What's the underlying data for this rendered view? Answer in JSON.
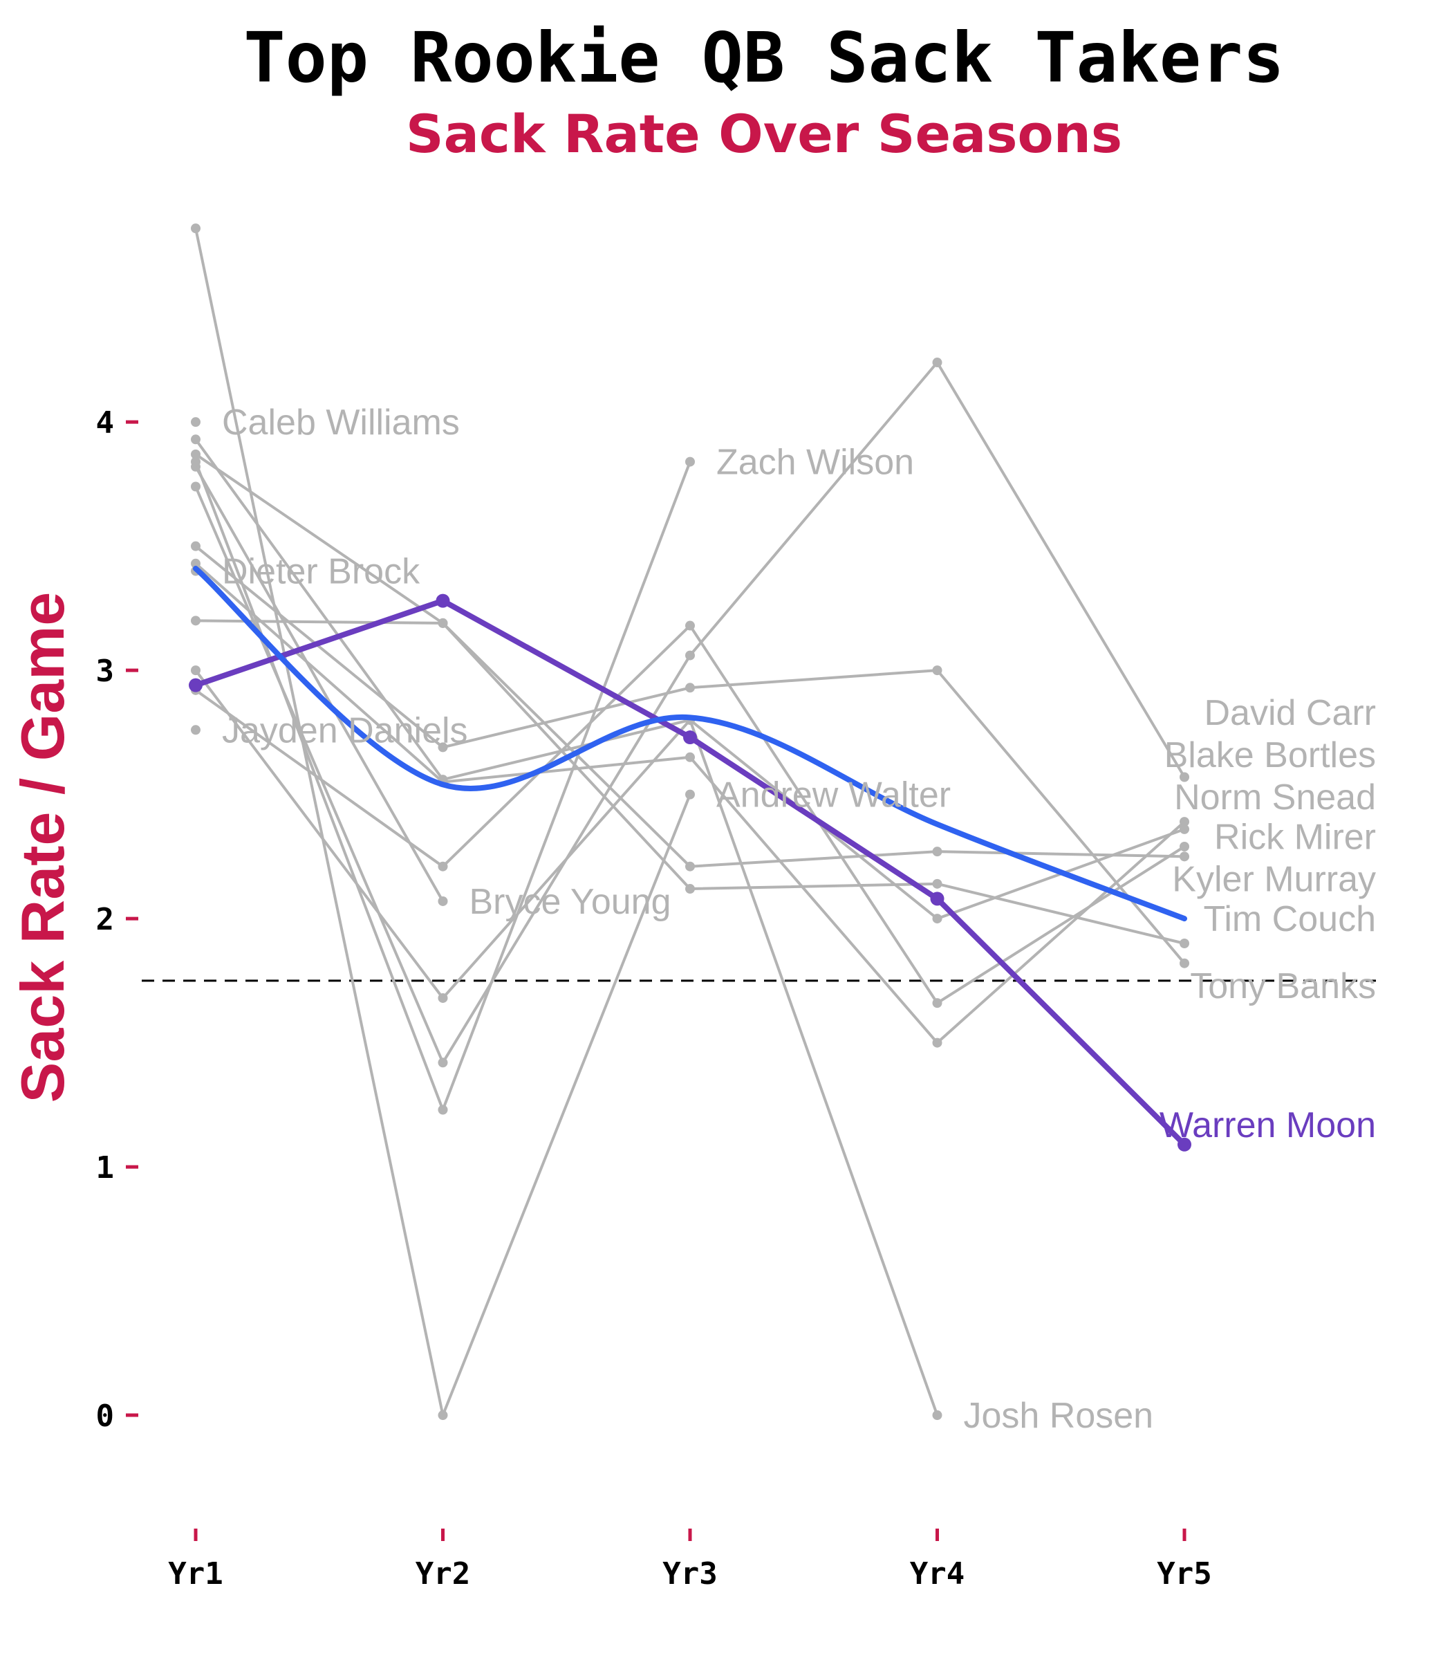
{
  "title": "Top Rookie QB Sack Takers",
  "subtitle": "Sack Rate Over Seasons",
  "colors": {
    "accent": "#c8174a",
    "grey": "#b3b3b3",
    "trend": "#2f62f0",
    "highlight": "#6a3dbf"
  },
  "chart_data": {
    "type": "line",
    "title": "Top Rookie QB Sack Takers",
    "subtitle": "Sack Rate Over Seasons",
    "xlabel": "",
    "ylabel": "Sack Rate / Game",
    "categories": [
      "Yr1",
      "Yr2",
      "Yr3",
      "Yr4",
      "Yr5"
    ],
    "y_ticks": [
      "0",
      "1",
      "2",
      "3",
      "4"
    ],
    "ylim": [
      -0.22,
      4.8
    ],
    "grid": false,
    "reference_line": 1.75,
    "series": [
      {
        "name": "Caleb Williams",
        "values": [
          4.0,
          null,
          null,
          null,
          null
        ]
      },
      {
        "name": "Dieter Brock",
        "values": [
          3.4,
          null,
          null,
          null,
          null
        ]
      },
      {
        "name": "Jayden Daniels",
        "values": [
          2.76,
          null,
          null,
          null,
          null
        ]
      },
      {
        "name": "Bryce Young",
        "values": [
          3.82,
          2.07,
          null,
          null,
          null
        ]
      },
      {
        "name": "Zach Wilson",
        "values": [
          3.84,
          1.23,
          3.84,
          null,
          null
        ]
      },
      {
        "name": "Andrew Walter",
        "values": [
          4.78,
          0.0,
          2.5,
          null,
          null
        ]
      },
      {
        "name": "Josh Rosen",
        "values": [
          3.93,
          2.56,
          2.8,
          0.0,
          null
        ]
      },
      {
        "name": "David Carr",
        "values": [
          3.74,
          1.42,
          3.06,
          4.24,
          2.57
        ]
      },
      {
        "name": "Blake Bortles",
        "values": [
          3.43,
          2.55,
          2.65,
          1.5,
          2.39
        ]
      },
      {
        "name": "Norm Snead",
        "values": [
          3.5,
          2.69,
          2.93,
          3.0,
          1.82
        ]
      },
      {
        "name": "Rick Mirer",
        "values": [
          3.2,
          3.19,
          2.21,
          2.27,
          2.25
        ]
      },
      {
        "name": "Kyler Murray",
        "values": [
          3.0,
          1.68,
          2.8,
          2.0,
          2.36
        ]
      },
      {
        "name": "Tim Couch",
        "values": [
          2.92,
          2.21,
          3.18,
          1.66,
          2.29
        ]
      },
      {
        "name": "Tony Banks",
        "values": [
          3.87,
          3.19,
          2.12,
          2.14,
          1.9
        ]
      },
      {
        "name": "Warren Moon",
        "values": [
          2.94,
          3.28,
          2.73,
          2.08,
          1.09
        ]
      }
    ],
    "trend": {
      "values": [
        3.41,
        2.54,
        2.81,
        2.38,
        2.0
      ]
    },
    "labels": [
      {
        "text": "Caleb Williams",
        "x": "Yr1",
        "y": 4.0,
        "anchor": "start"
      },
      {
        "text": "Dieter Brock",
        "x": "Yr1",
        "y": 3.4,
        "anchor": "start"
      },
      {
        "text": "Jayden Daniels",
        "x": "Yr1",
        "y": 2.76,
        "anchor": "start"
      },
      {
        "text": "Bryce Young",
        "x": "Yr2",
        "y": 2.07,
        "anchor": "start"
      },
      {
        "text": "Zach Wilson",
        "x": "Yr3",
        "y": 3.84,
        "anchor": "start"
      },
      {
        "text": "Andrew Walter",
        "x": "Yr3",
        "y": 2.5,
        "anchor": "start"
      },
      {
        "text": "Josh Rosen",
        "x": "Yr4",
        "y": 0.0,
        "anchor": "start"
      },
      {
        "text": "David Carr",
        "x": "Yr5",
        "y": 2.83,
        "anchor": "end"
      },
      {
        "text": "Blake Bortles",
        "x": "Yr5",
        "y": 2.66,
        "anchor": "end"
      },
      {
        "text": "Norm Snead",
        "x": "Yr5",
        "y": 2.49,
        "anchor": "end"
      },
      {
        "text": "Rick Mirer",
        "x": "Yr5",
        "y": 2.33,
        "anchor": "end"
      },
      {
        "text": "Kyler Murray",
        "x": "Yr5",
        "y": 2.16,
        "anchor": "end"
      },
      {
        "text": "Tim Couch",
        "x": "Yr5",
        "y": 2.0,
        "anchor": "end"
      },
      {
        "text": "Tony Banks",
        "x": "Yr5",
        "y": 1.73,
        "anchor": "end"
      },
      {
        "text": "Warren Moon",
        "x": "Yr5",
        "y": 1.17,
        "anchor": "end",
        "highlight": true
      }
    ]
  }
}
